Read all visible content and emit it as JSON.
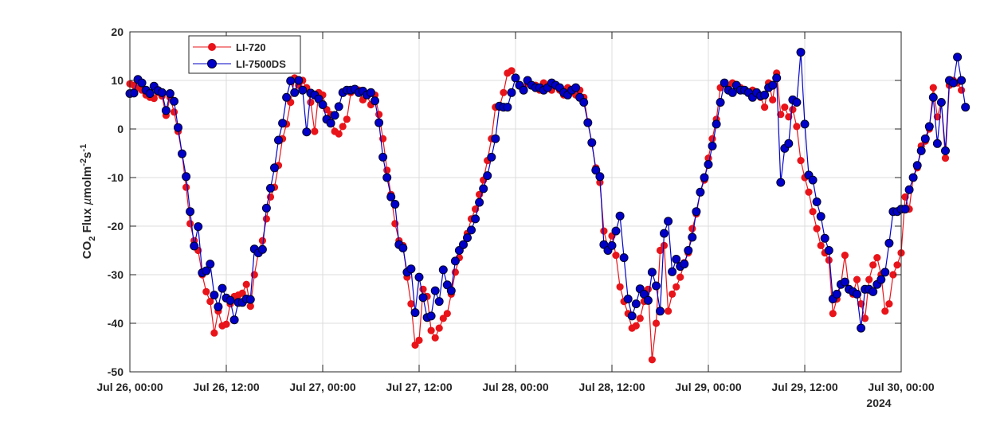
{
  "chart_data": {
    "type": "line",
    "title": "",
    "xlabel": "",
    "ylabel": "CO2 Flux µmolm-2s-1",
    "ylabel_parts": {
      "main": "CO",
      "sub": "2",
      "mid": " Flux ",
      "mu": "µ",
      "unit": "molm",
      "sup1": "-2",
      "unit2": "s",
      "sup2": "-1"
    },
    "ylim": [
      -50,
      20
    ],
    "yticks": [
      20,
      10,
      0,
      -10,
      -20,
      -30,
      -40,
      -50
    ],
    "x_range": [
      "2024-07-26 00:00",
      "2024-07-30 00:00"
    ],
    "x_step_minutes": 30,
    "xticks": [
      "Jul 26, 00:00",
      "Jul 26, 12:00",
      "Jul 27, 00:00",
      "Jul 27, 12:00",
      "Jul 28, 00:00",
      "Jul 28, 12:00",
      "Jul 29, 00:00",
      "Jul 29, 12:00",
      "Jul 30, 00:00"
    ],
    "x_secondary_label": "2024",
    "grid": true,
    "legend_position": "upper left (inside)",
    "series": [
      {
        "name": "LI-720",
        "color": "#e8141a",
        "values": [
          9.3,
          9.0,
          8.5,
          8.0,
          7.0,
          6.5,
          6.3,
          7.5,
          6.8,
          2.8,
          6.5,
          3.5,
          -0.5,
          -5.2,
          -12.0,
          -19.5,
          -23.0,
          -25.0,
          -30.0,
          -33.5,
          -35.5,
          -42.0,
          -37.5,
          -40.5,
          -40.2,
          -36.0,
          -34.5,
          -34.2,
          -33.8,
          -32.0,
          -36.5,
          -30.0,
          -25.5,
          -23.0,
          -18.5,
          -14.0,
          -12.0,
          -7.5,
          -2.0,
          1.0,
          5.5,
          10.5,
          9.0,
          10.0,
          8.5,
          5.5,
          -0.5,
          7.5,
          7.0,
          4.0,
          3.0,
          -0.5,
          -1.0,
          0.5,
          2.0,
          7.5,
          8.0,
          8.0,
          6.0,
          7.0,
          5.0,
          7.0,
          3.0,
          -2.0,
          -8.5,
          -13.5,
          -19.5,
          -23.0,
          -24.0,
          -30.5,
          -36.0,
          -44.5,
          -43.5,
          -33.0,
          -34.5,
          -41.5,
          -43.0,
          -41.0,
          -39.0,
          -38.0,
          -34.0,
          -29.5,
          -26.5,
          -24.0,
          -21.5,
          -18.5,
          -16.5,
          -13.5,
          -10.5,
          -6.5,
          -2.0,
          4.5,
          4.5,
          7.5,
          11.5,
          12.0,
          10.5,
          9.0,
          8.5,
          9.5,
          9.0,
          9.0,
          8.0,
          9.5,
          9.0,
          8.0,
          9.0,
          8.0,
          7.0,
          8.5,
          7.5,
          7.0,
          8.0,
          6.5,
          1.5,
          -3.0,
          -8.0,
          -11.0,
          -21.0,
          -24.5,
          -22.0,
          -26.0,
          -32.5,
          -35.5,
          -38.0,
          -41.0,
          -40.5,
          -39.0,
          -35.5,
          -33.0,
          -47.5,
          -40.0,
          -25.0,
          -24.0,
          -37.5,
          -34.0,
          -32.5,
          -30.5,
          -27.5,
          -25.5,
          -20.5,
          -17.5,
          -13.0,
          -10.5,
          -6.0,
          -2.0,
          2.0,
          8.5,
          9.5,
          8.5,
          9.5,
          9.0,
          8.5,
          8.0,
          7.5,
          8.0,
          7.5,
          6.5,
          4.5,
          9.5,
          6.0,
          11.5,
          3.0,
          4.5,
          2.5,
          4.0,
          0.5,
          -6.5,
          -10.0,
          -13.0,
          -17.0,
          -20.5,
          -24.0,
          -25.5,
          -27.0,
          -38.0,
          -35.0,
          -32.0,
          -26.0,
          -33.0,
          -34.0,
          -31.0,
          -36.0,
          -39.0,
          -31.0,
          -28.0,
          -26.5,
          -30.0,
          -37.5,
          -36.0,
          -30.0,
          -28.0,
          -25.5,
          -14.0,
          -16.5,
          -10.0,
          -8.0,
          -3.5,
          -2.5,
          0.0,
          8.5,
          2.5,
          5.5,
          -6.0,
          9.0,
          10.0,
          9.5,
          8.0
        ]
      },
      {
        "name": "LI-7500DS",
        "color": "#0000c8",
        "values": [
          7.3,
          7.4,
          10.2,
          9.5,
          8.0,
          7.3,
          8.8,
          7.9,
          7.5,
          3.8,
          7.3,
          5.7,
          0.3,
          -5.1,
          -9.8,
          -17.0,
          -24.1,
          -20.1,
          -29.6,
          -29.2,
          -27.8,
          -34.2,
          -36.6,
          -32.8,
          -34.8,
          -35.3,
          -39.3,
          -35.7,
          -35.7,
          -35.0,
          -35.1,
          -24.7,
          -25.5,
          -24.8,
          -16.3,
          -12.2,
          -8.0,
          -2.3,
          1.2,
          6.5,
          9.9,
          7.5,
          10.0,
          8.0,
          -0.6,
          7.4,
          7.0,
          6.2,
          5.0,
          2.0,
          1.2,
          2.8,
          4.6,
          7.5,
          8.0,
          8.0,
          8.2,
          7.5,
          7.8,
          7.0,
          7.5,
          5.8,
          1.3,
          -5.8,
          -10.0,
          -14.0,
          -15.5,
          -23.8,
          -24.5,
          -29.5,
          -28.8,
          -37.8,
          -30.5,
          -34.7,
          -38.8,
          -38.5,
          -33.3,
          -35.5,
          -29.0,
          -32.1,
          -33.3,
          -27.2,
          -25.0,
          -23.8,
          -22.4,
          -20.8,
          -18.5,
          -15.1,
          -12.3,
          -9.6,
          -5.8,
          -2.0,
          4.7,
          4.5,
          4.5,
          7.5,
          10.5,
          9.0,
          8.0,
          10.0,
          9.0,
          8.5,
          8.5,
          8.0,
          8.5,
          9.5,
          9.0,
          8.5,
          7.5,
          7.0,
          8.0,
          8.5,
          6.5,
          5.5,
          1.3,
          -2.8,
          -8.5,
          -9.8,
          -23.8,
          -25.0,
          -24.0,
          -21.0,
          -17.9,
          -26.5,
          -35.0,
          -38.5,
          -36.0,
          -32.9,
          -34.0,
          -35.3,
          -29.5,
          -32.3,
          -37.5,
          -21.5,
          -19.0,
          -29.4,
          -26.8,
          -28.3,
          -27.8,
          -25.0,
          -22.3,
          -17.0,
          -13.0,
          -10.0,
          -7.3,
          -3.5,
          1.0,
          5.5,
          9.5,
          8.0,
          7.5,
          9.0,
          8.0,
          8.0,
          7.5,
          6.5,
          7.5,
          6.8,
          7.0,
          8.5,
          9.0,
          10.5,
          -11.0,
          -4.0,
          -3.0,
          6.0,
          5.5,
          15.8,
          1.0,
          -9.5,
          -10.5,
          -15.0,
          -18.0,
          -22.5,
          -25.0,
          -35.0,
          -34.0,
          -32.0,
          -31.5,
          -33.0,
          -33.5,
          -34.0,
          -41.0,
          -33.0,
          -33.0,
          -33.5,
          -32.0,
          -31.0,
          -29.5,
          -23.5,
          -17.0,
          -17.0,
          -16.5,
          -16.5,
          -12.5,
          -10.0,
          -7.5,
          -4.5,
          -2.0,
          0.5,
          6.5,
          -3.0,
          5.5,
          -4.5,
          10.0,
          9.5,
          14.8,
          10.0,
          4.5
        ]
      }
    ]
  },
  "legend": {
    "items": [
      {
        "label": "LI-720",
        "color": "#e8141a"
      },
      {
        "label": "LI-7500DS",
        "color": "#0000c8"
      }
    ]
  }
}
